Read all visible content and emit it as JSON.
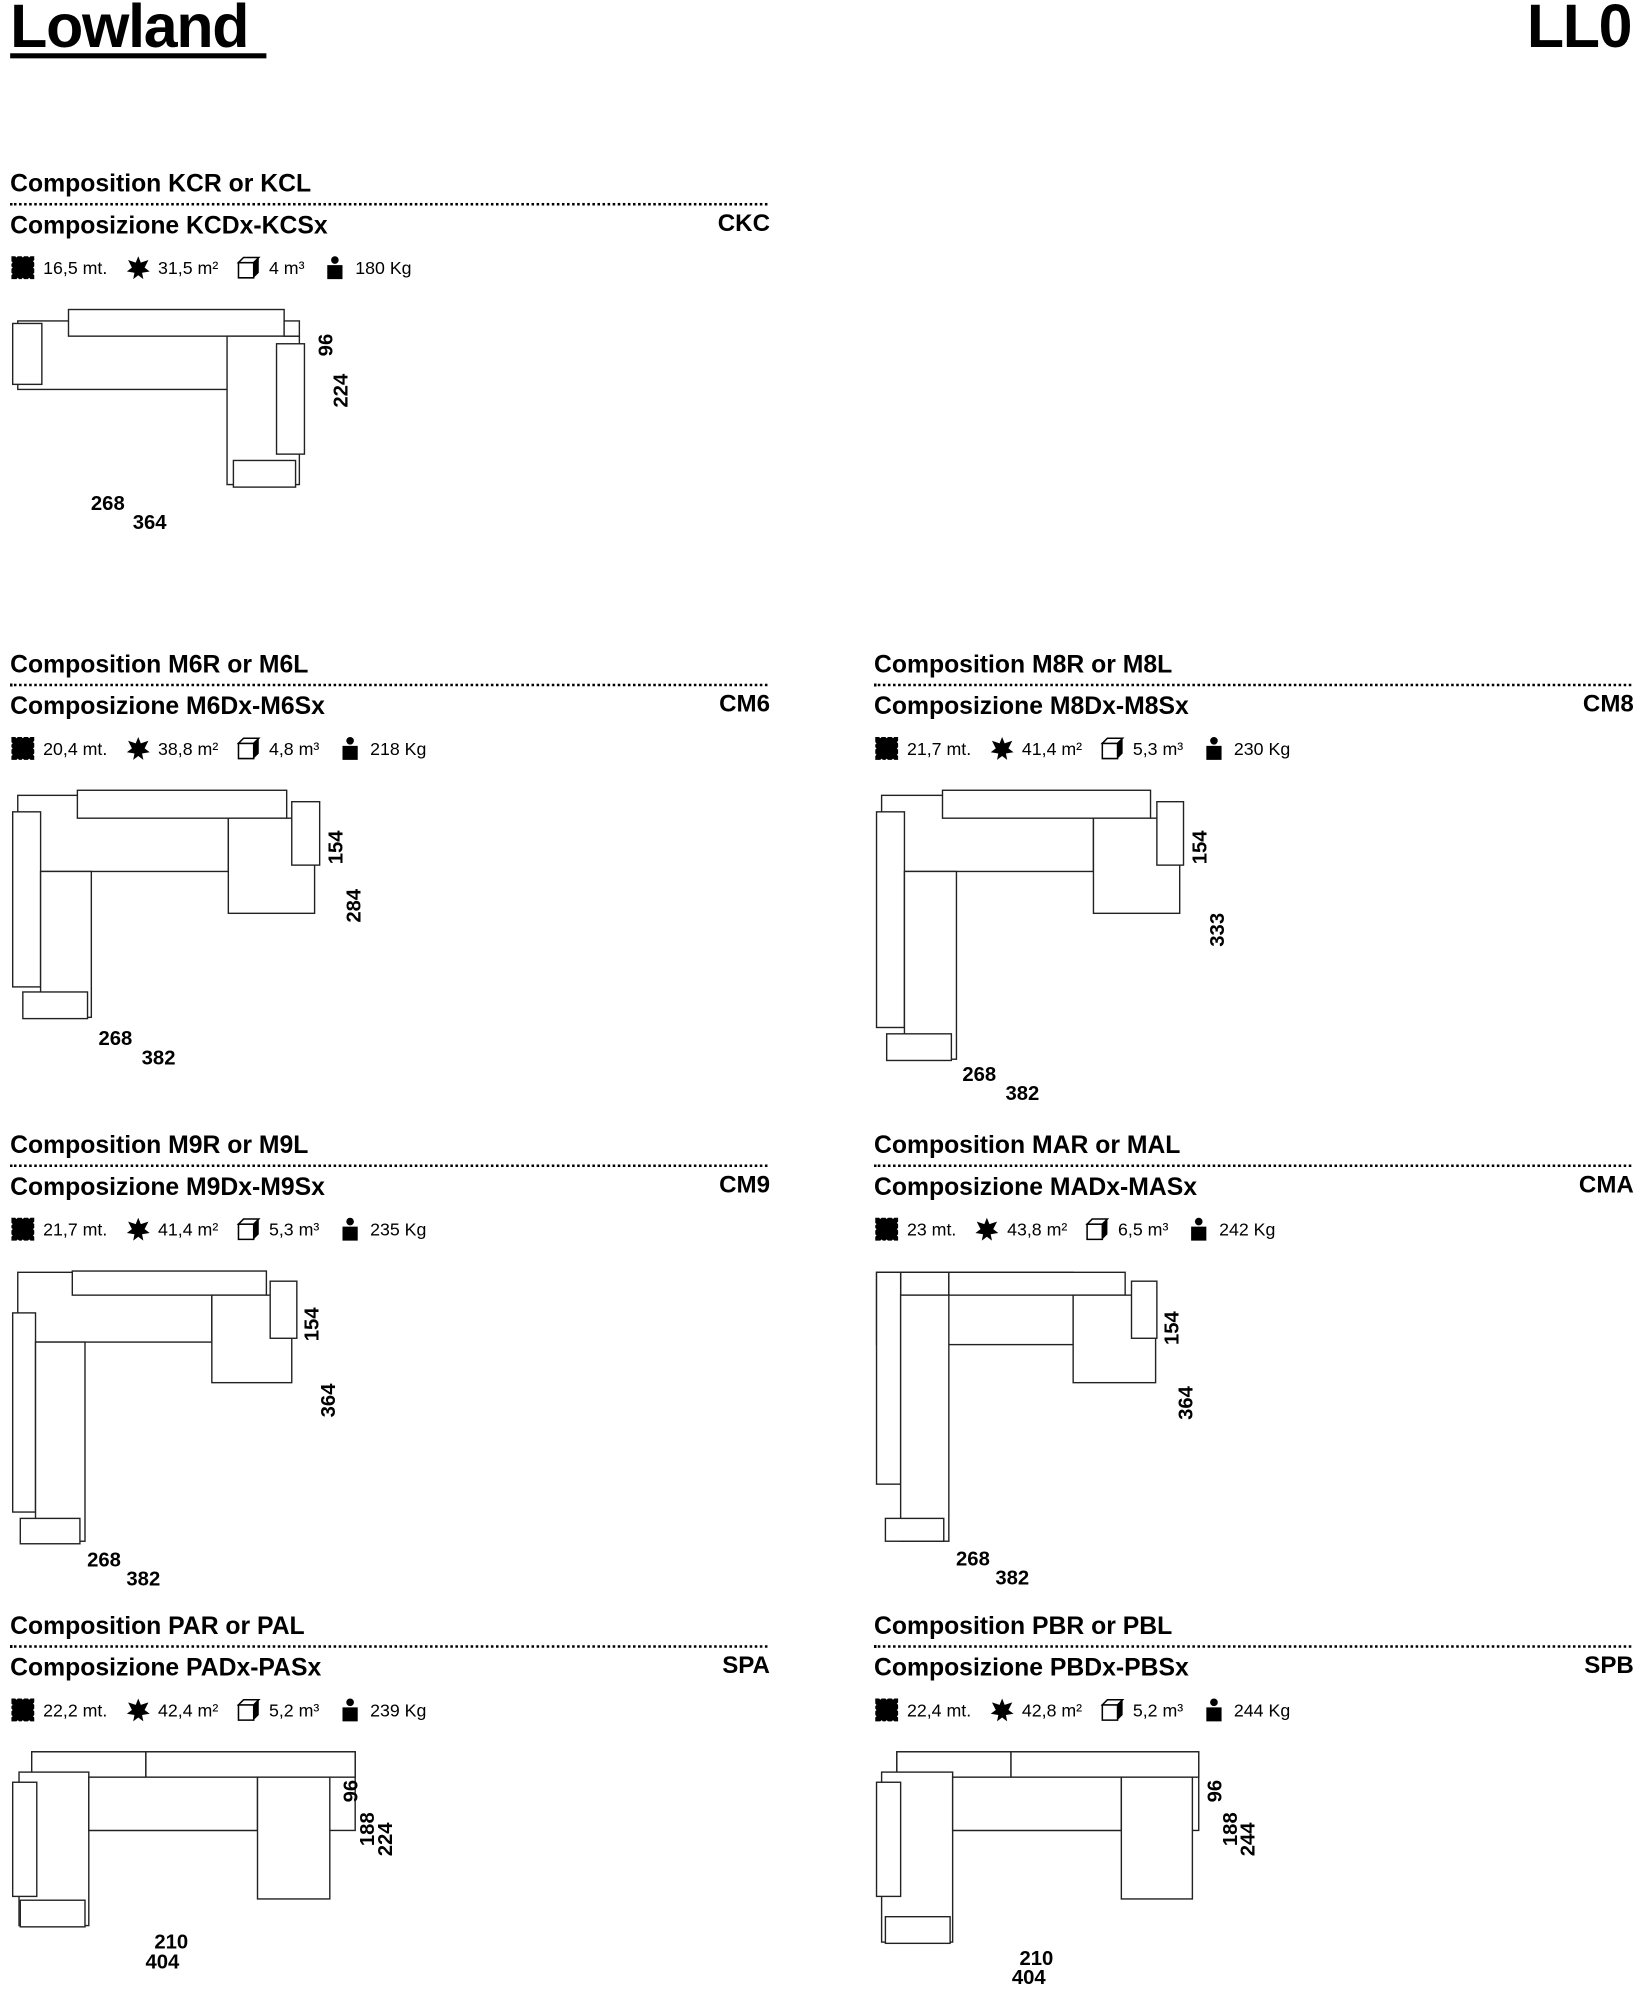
{
  "header": {
    "brand": "Lowland",
    "code": "LL0"
  },
  "icons": [
    "leather-hide-icon",
    "hide-area-icon",
    "volume-cube-icon",
    "weight-icon"
  ],
  "blocks": [
    {
      "title_en": "Composition KCR or KCL",
      "title_it": "Composizione KCDx-KCSx",
      "code": "CKC",
      "stats": [
        "16,5 mt.",
        "31,5 m²",
        "4 m³",
        "180 Kg"
      ],
      "dims": [
        "96",
        "224",
        "268",
        "364"
      ]
    },
    {
      "title_en": "Composition M6R or M6L",
      "title_it": "Composizione M6Dx-M6Sx",
      "code": "CM6",
      "stats": [
        "20,4 mt.",
        "38,8 m²",
        "4,8 m³",
        "218 Kg"
      ],
      "dims": [
        "154",
        "284",
        "268",
        "382"
      ]
    },
    {
      "title_en": "Composition M8R or M8L",
      "title_it": "Composizione M8Dx-M8Sx",
      "code": "CM8",
      "stats": [
        "21,7 mt.",
        "41,4 m²",
        "5,3 m³",
        "230 Kg"
      ],
      "dims": [
        "154",
        "333",
        "268",
        "382"
      ]
    },
    {
      "title_en": "Composition M9R or M9L",
      "title_it": "Composizione M9Dx-M9Sx",
      "code": "CM9",
      "stats": [
        "21,7 mt.",
        "41,4 m²",
        "5,3 m³",
        "235 Kg"
      ],
      "dims": [
        "154",
        "364",
        "268",
        "382"
      ]
    },
    {
      "title_en": "Composition MAR or MAL",
      "title_it": "Composizione MADx-MASx",
      "code": "CMA",
      "stats": [
        "23 mt.",
        "43,8 m²",
        "6,5 m³",
        "242 Kg"
      ],
      "dims": [
        "154",
        "364",
        "268",
        "382"
      ]
    },
    {
      "title_en": "Composition PAR or PAL",
      "title_it": "Composizione PADx-PASx",
      "code": "SPA",
      "stats": [
        "22,2 mt.",
        "42,4 m²",
        "5,2 m³",
        "239 Kg"
      ],
      "dims": [
        "96",
        "188",
        "224",
        "210",
        "404"
      ]
    },
    {
      "title_en": "Composition PBR or PBL",
      "title_it": "Composizione PBDx-PBSx",
      "code": "SPB",
      "stats": [
        "22,4 mt.",
        "42,8 m²",
        "5,2 m³",
        "244 Kg"
      ],
      "dims": [
        "96",
        "188",
        "244",
        "210",
        "404"
      ]
    }
  ]
}
